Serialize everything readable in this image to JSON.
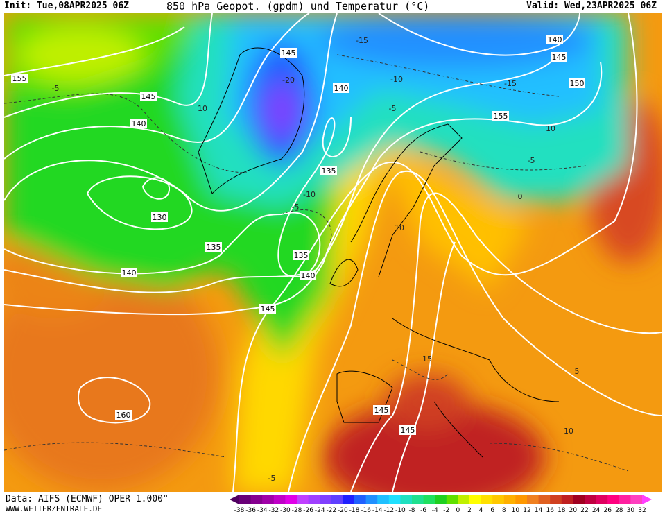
{
  "header": {
    "init": "Init: Tue,08APR2025 06Z",
    "title": "850 hPa Geopot. (gpdm) und Temperatur (°C)",
    "valid": "Valid: Wed,23APR2025 06Z"
  },
  "footer": {
    "source": "Data: AIFS (ECMWF) OPER 1.000°",
    "site": "WWW.WETTERZENTRALE.DE"
  },
  "map": {
    "geopotential_labels": [
      155,
      145,
      140,
      130,
      135,
      140,
      145,
      160,
      145,
      145,
      135,
      140,
      135,
      145,
      140,
      140,
      145,
      150,
      155
    ],
    "temperature_labels": [
      -5,
      10,
      -20,
      -15,
      -10,
      -5,
      0,
      10,
      5,
      15,
      10,
      -15,
      10,
      -5,
      -10,
      -5,
      -5
    ]
  },
  "colorbar": {
    "labels": [
      -38,
      -36,
      -34,
      -32,
      -30,
      -28,
      -26,
      -24,
      -22,
      -20,
      -18,
      -16,
      -14,
      -12,
      -10,
      -8,
      -6,
      -4,
      -2,
      0,
      2,
      4,
      6,
      8,
      10,
      12,
      14,
      16,
      18,
      20,
      22,
      24,
      26,
      28,
      30,
      32
    ],
    "colors": [
      "#500060",
      "#6a0078",
      "#860090",
      "#a000a8",
      "#c000c8",
      "#e000e8",
      "#c040ff",
      "#a040ff",
      "#8040ff",
      "#6040ff",
      "#2020ff",
      "#2060ff",
      "#2090ff",
      "#20c0ff",
      "#20e0ff",
      "#20e0c0",
      "#20e090",
      "#20e060",
      "#20d020",
      "#60e000",
      "#c0f000",
      "#ffff00",
      "#ffe000",
      "#ffc800",
      "#ffb000",
      "#ff9800",
      "#f08020",
      "#e06020",
      "#d04020",
      "#c02020",
      "#a00020",
      "#c00040",
      "#e00060",
      "#ff0080",
      "#ff20a0",
      "#ff40c0",
      "#ff40ff"
    ]
  }
}
